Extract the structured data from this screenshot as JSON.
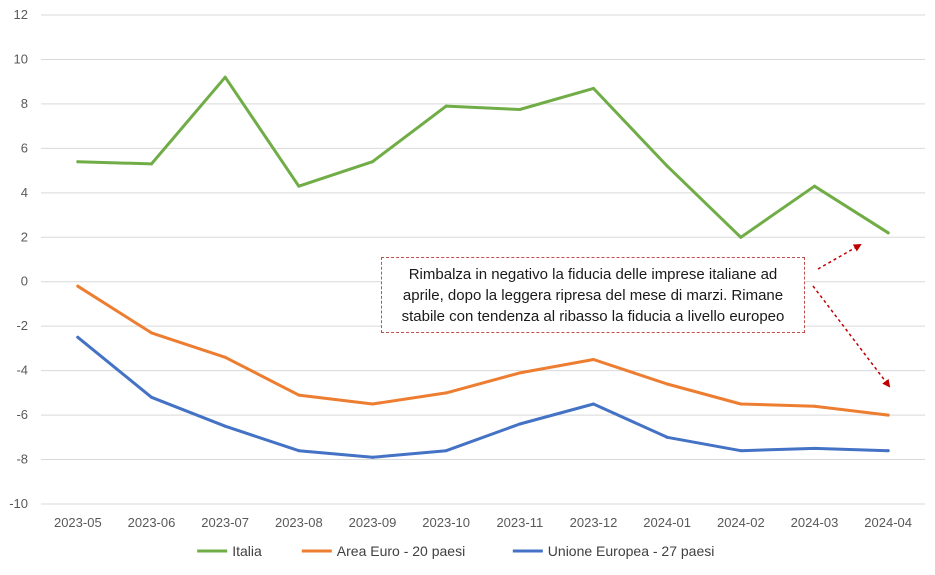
{
  "chart_data": {
    "type": "line",
    "categories": [
      "2023-05",
      "2023-06",
      "2023-07",
      "2023-08",
      "2023-09",
      "2023-10",
      "2023-11",
      "2023-12",
      "2024-01",
      "2024-02",
      "2024-03",
      "2024-04"
    ],
    "series": [
      {
        "name": "Italia",
        "color": "#70ad47",
        "values": [
          5.4,
          5.3,
          9.2,
          4.3,
          5.4,
          7.9,
          7.75,
          8.7,
          5.2,
          2.0,
          4.3,
          2.2
        ]
      },
      {
        "name": "Area Euro - 20 paesi",
        "color": "#ed7d31",
        "values": [
          -0.2,
          -2.3,
          -3.4,
          -5.1,
          -5.5,
          -5.0,
          -4.1,
          -3.5,
          -4.6,
          -5.5,
          -5.6,
          -6.0
        ]
      },
      {
        "name": "Unione Europea - 27 paesi",
        "color": "#4472c4",
        "values": [
          -2.5,
          -5.2,
          -6.5,
          -7.6,
          -7.9,
          -7.6,
          -6.4,
          -5.5,
          -7.0,
          -7.6,
          -7.5,
          -7.6
        ]
      }
    ],
    "y_ticks": [
      "12",
      "10",
      "8",
      "6",
      "4",
      "2",
      "0",
      "-2",
      "-4",
      "-6",
      "-8",
      "-10"
    ],
    "ylim": [
      -10,
      12
    ],
    "grid": "horizontal",
    "legend_position": "bottom",
    "annotation": {
      "text": "Rimbalza in negativo la fiducia delle imprese italiane ad aprile, dopo la leggera ripresa del mese di marzi. Rimane stabile con tendenza al ribasso la fiducia a livello europeo",
      "border_color": "#c0504d",
      "arrow_color": "#c00000"
    }
  }
}
